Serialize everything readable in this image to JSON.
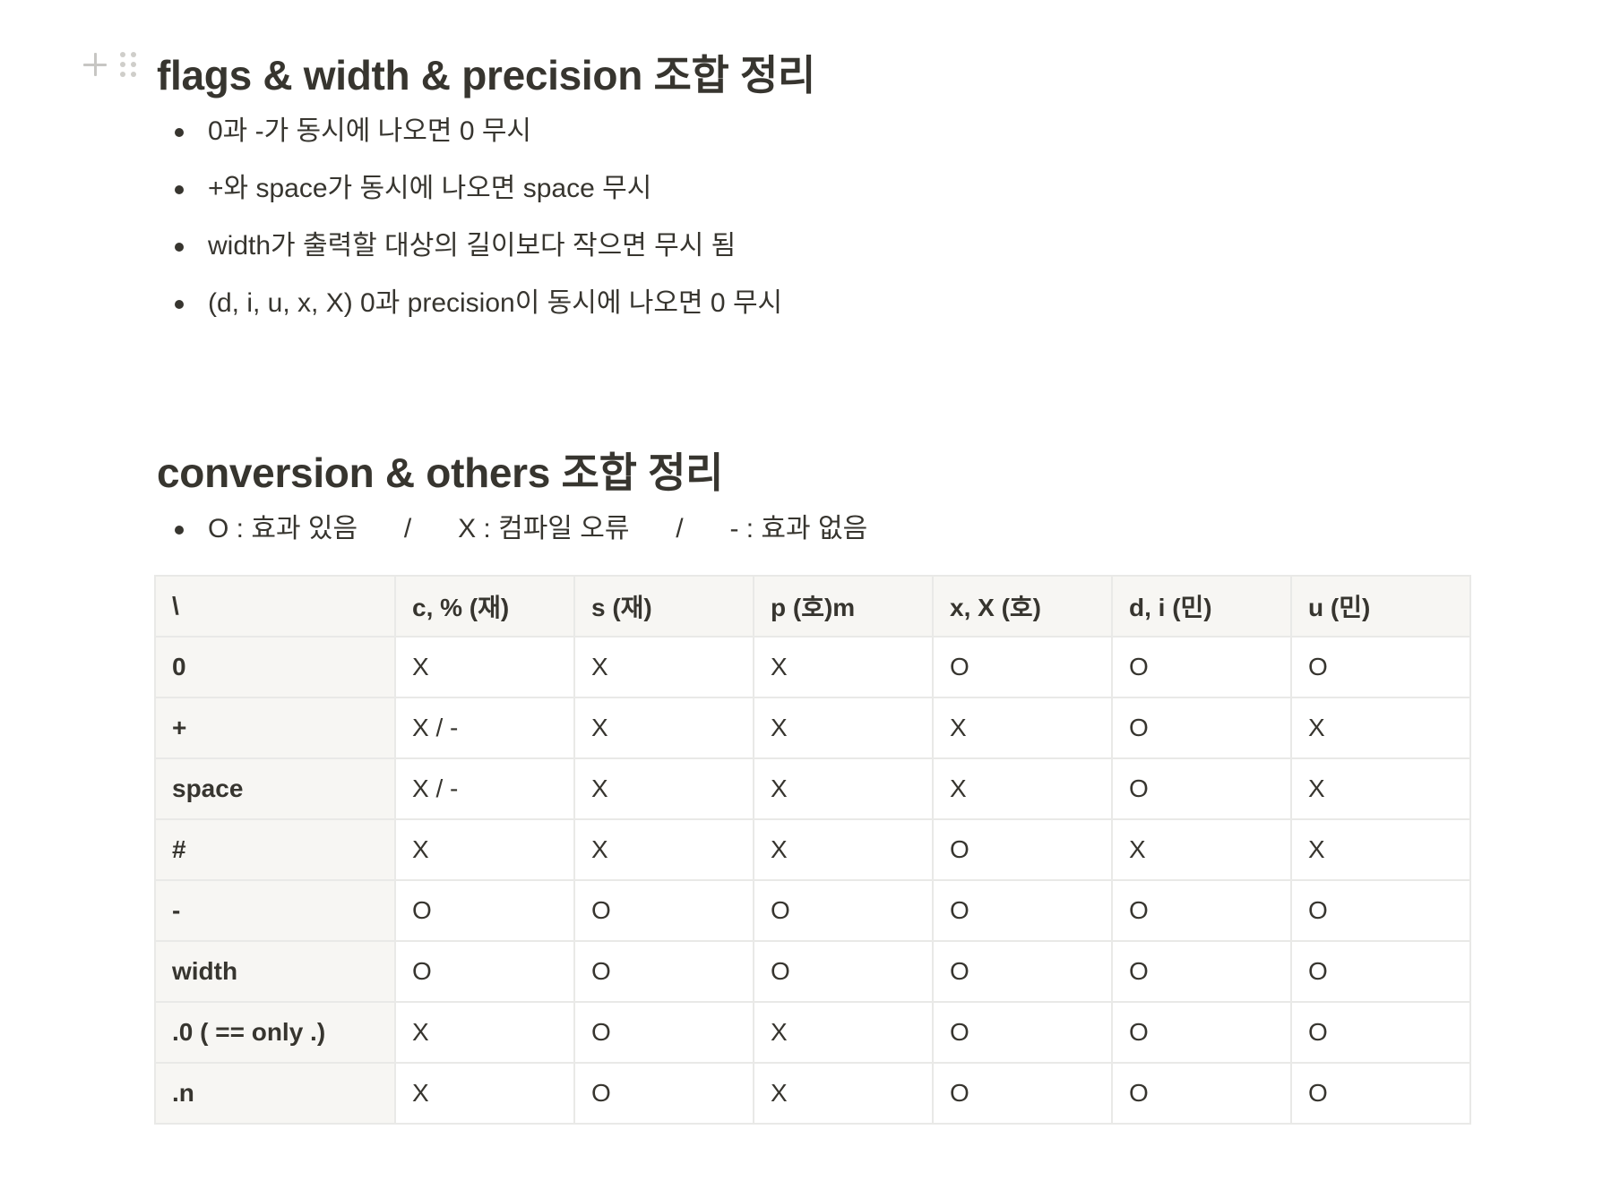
{
  "section1": {
    "title": "flags & width & precision 조합 정리",
    "bullets": [
      "0과 -가 동시에 나오면 0 무시",
      "+와 space가 동시에 나오면 space 무시",
      "width가 출력할 대상의 길이보다 작으면 무시 됨",
      "(d, i, u, x, X) 0과 precision이 동시에 나오면 0 무시"
    ]
  },
  "section2": {
    "title": "conversion & others 조합 정리",
    "legend": {
      "o": "O : 효과 있음",
      "sep": "/",
      "x": "X : 컴파일 오류",
      "dash": "- : 효과 없음"
    }
  },
  "table": {
    "headers": [
      "\\",
      "c, % (재)",
      "s (재)",
      "p (호)m",
      "x, X (호)",
      "d, i (민)",
      "u (민)"
    ],
    "rows": [
      [
        "0",
        "X",
        "X",
        "X",
        "O",
        "O",
        "O"
      ],
      [
        "+",
        "X / -",
        "X",
        "X",
        "X",
        "O",
        "X"
      ],
      [
        "space",
        "X / -",
        "X",
        "X",
        "X",
        "O",
        "X"
      ],
      [
        "#",
        "X",
        "X",
        "X",
        "O",
        "X",
        "X"
      ],
      [
        "-",
        "O",
        "O",
        "O",
        "O",
        "O",
        "O"
      ],
      [
        "width",
        "O",
        "O",
        "O",
        "O",
        "O",
        "O"
      ],
      [
        ".0 ( == only .)",
        "X",
        "O",
        "X",
        "O",
        "O",
        "O"
      ],
      [
        ".n",
        "X",
        "O",
        "X",
        "O",
        "O",
        "O"
      ]
    ]
  }
}
